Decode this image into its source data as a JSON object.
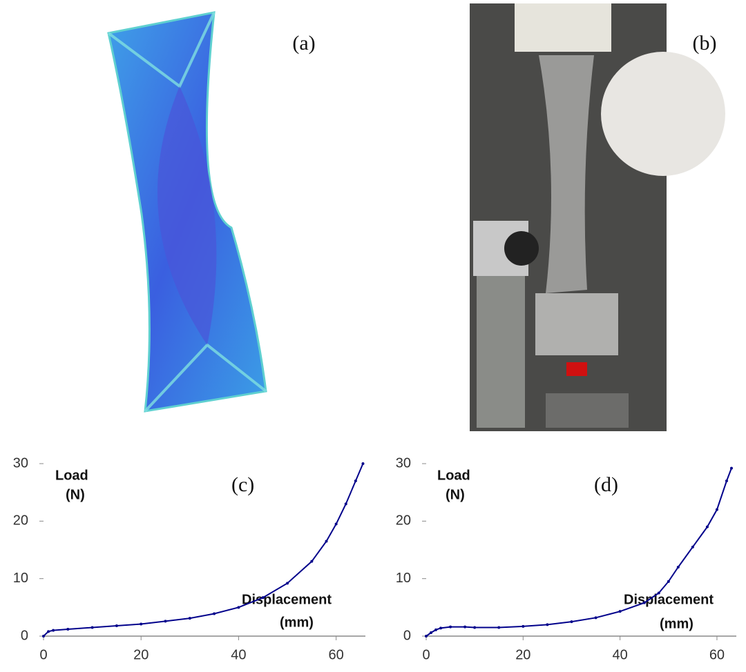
{
  "panels": [
    {
      "label": "(a)"
    },
    {
      "label": "(b)"
    }
  ],
  "chart_data": [
    {
      "type": "line",
      "color": "#00008b",
      "annotations": [
        "Load",
        "(N)",
        "(c)",
        "Displacement",
        "(mm)"
      ],
      "x": [
        0,
        1,
        2,
        5,
        10,
        15,
        20,
        25,
        30,
        35,
        40,
        45,
        50,
        55,
        58,
        60,
        62,
        64,
        65.5
      ],
      "values": [
        0,
        0.8,
        1,
        1.2,
        1.5,
        1.8,
        2.1,
        2.6,
        3.1,
        3.9,
        5,
        6.7,
        9.2,
        13,
        16.5,
        19.5,
        23,
        27,
        30
      ],
      "xlim": [
        0,
        66
      ],
      "ylim": [
        0,
        30
      ],
      "xticks": [
        0,
        20,
        40,
        60
      ],
      "yticks": [
        0,
        10,
        20,
        30
      ],
      "grid": false
    },
    {
      "type": "line",
      "color": "#00008b",
      "annotations": [
        "Load",
        "(N)",
        "(d)",
        "Displacement",
        "(mm)"
      ],
      "x": [
        0,
        1,
        2,
        3,
        5,
        8,
        10,
        15,
        20,
        25,
        30,
        35,
        40,
        45,
        48,
        50,
        52,
        55,
        58,
        60,
        62,
        63
      ],
      "values": [
        0,
        0.6,
        1.1,
        1.4,
        1.6,
        1.6,
        1.5,
        1.5,
        1.7,
        2,
        2.5,
        3.2,
        4.3,
        5.8,
        7.5,
        9.5,
        12,
        15.5,
        19,
        22,
        27,
        29.2
      ],
      "xlim": [
        0,
        64
      ],
      "ylim": [
        0,
        30
      ],
      "xticks": [
        0,
        20,
        40,
        60
      ],
      "yticks": [
        0,
        10,
        20,
        30
      ],
      "grid": false
    }
  ]
}
